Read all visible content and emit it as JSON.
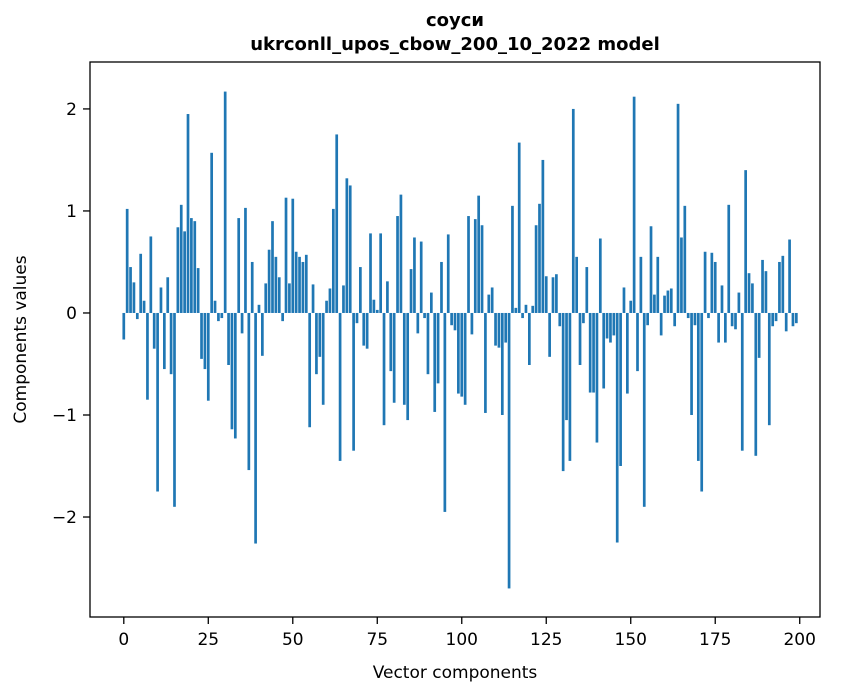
{
  "title": {
    "line1": "соуси",
    "line2": "ukrconll_upos_cbow_200_10_2022 model"
  },
  "chart_data": {
    "type": "bar",
    "title": "соуси",
    "subtitle": "ukrconll_upos_cbow_200_10_2022 model",
    "xlabel": "Vector components",
    "ylabel": "Components values",
    "x_ticks": [
      0,
      25,
      50,
      75,
      100,
      125,
      150,
      175,
      200
    ],
    "y_ticks": [
      -2,
      -1,
      0,
      1,
      2
    ],
    "xlim": [
      -10,
      206
    ],
    "ylim": [
      -2.98,
      2.46
    ],
    "n_components": 200,
    "bar_color": "#1f77b4",
    "grid": false,
    "legend": "none",
    "values": [
      -0.26,
      1.02,
      0.45,
      0.3,
      -0.06,
      0.58,
      0.12,
      -0.85,
      0.75,
      -0.35,
      -1.75,
      0.25,
      -0.55,
      0.35,
      -0.6,
      -1.9,
      0.84,
      1.06,
      0.8,
      1.95,
      0.93,
      0.9,
      0.44,
      -0.45,
      -0.55,
      -0.86,
      1.57,
      0.12,
      -0.08,
      -0.05,
      2.17,
      -0.51,
      -1.14,
      -1.23,
      0.93,
      -0.2,
      1.03,
      -1.54,
      0.5,
      -2.26,
      0.08,
      -0.42,
      0.29,
      0.62,
      0.9,
      0.55,
      0.35,
      -0.08,
      1.13,
      0.29,
      1.12,
      0.6,
      0.55,
      0.5,
      0.57,
      -1.12,
      0.28,
      -0.6,
      -0.43,
      -0.9,
      0.12,
      0.24,
      1.02,
      1.75,
      -1.45,
      0.27,
      1.32,
      1.25,
      -1.35,
      -0.1,
      0.45,
      -0.32,
      -0.35,
      0.78,
      0.13,
      0.03,
      0.78,
      -1.1,
      0.31,
      -0.57,
      -0.88,
      0.95,
      1.16,
      -0.9,
      -1.05,
      0.43,
      0.74,
      -0.2,
      0.7,
      -0.05,
      -0.6,
      0.2,
      -0.97,
      -0.69,
      0.5,
      -1.95,
      0.77,
      -0.12,
      -0.17,
      -0.79,
      -0.82,
      -0.9,
      0.95,
      -0.21,
      0.92,
      1.15,
      0.86,
      -0.98,
      0.18,
      0.25,
      -0.32,
      -0.34,
      -1.0,
      -0.29,
      -2.7,
      1.05,
      0.05,
      1.67,
      -0.05,
      0.08,
      -0.51,
      0.07,
      0.86,
      1.07,
      1.5,
      0.36,
      -0.43,
      0.35,
      0.38,
      -0.13,
      -1.55,
      -1.05,
      -1.45,
      2.0,
      0.55,
      -0.51,
      -0.1,
      0.45,
      -0.78,
      -0.78,
      -1.27,
      0.73,
      -0.74,
      -0.25,
      -0.29,
      -0.22,
      -2.25,
      -1.5,
      0.25,
      -0.79,
      0.12,
      2.12,
      -0.57,
      0.55,
      -1.9,
      -0.12,
      0.85,
      0.18,
      0.55,
      -0.22,
      0.17,
      0.22,
      0.24,
      -0.13,
      2.05,
      0.74,
      1.05,
      -0.05,
      -1.0,
      -0.12,
      -1.45,
      -1.75,
      0.6,
      -0.05,
      0.59,
      0.5,
      -0.29,
      0.27,
      -0.29,
      1.06,
      -0.13,
      -0.16,
      0.2,
      -1.35,
      1.4,
      0.39,
      0.29,
      -1.4,
      -0.44,
      0.52,
      0.41,
      -1.1,
      -0.13,
      -0.08,
      0.5,
      0.56,
      -0.18,
      0.72,
      -0.13,
      -0.1
    ]
  }
}
